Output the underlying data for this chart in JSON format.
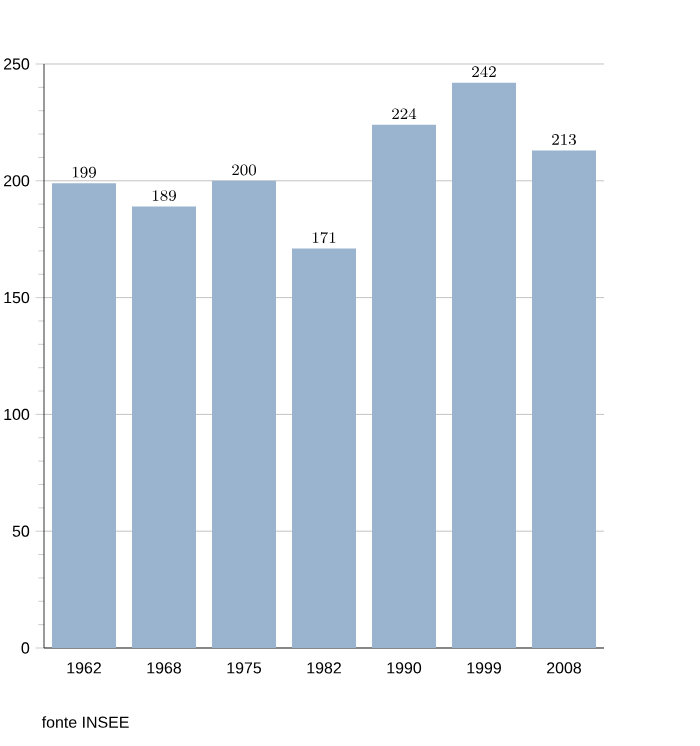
{
  "chart_data": {
    "type": "bar",
    "categories": [
      "1962",
      "1968",
      "1975",
      "1982",
      "1990",
      "1999",
      "2008"
    ],
    "values": [
      199,
      189,
      200,
      171,
      224,
      242,
      213
    ],
    "color": "#9ab3cf",
    "ylim": [
      0,
      250
    ],
    "yticks": [
      0,
      50,
      100,
      150,
      200,
      250
    ],
    "grid": "y",
    "data_labels": true,
    "annotations": [
      "fonte INSEE"
    ]
  }
}
